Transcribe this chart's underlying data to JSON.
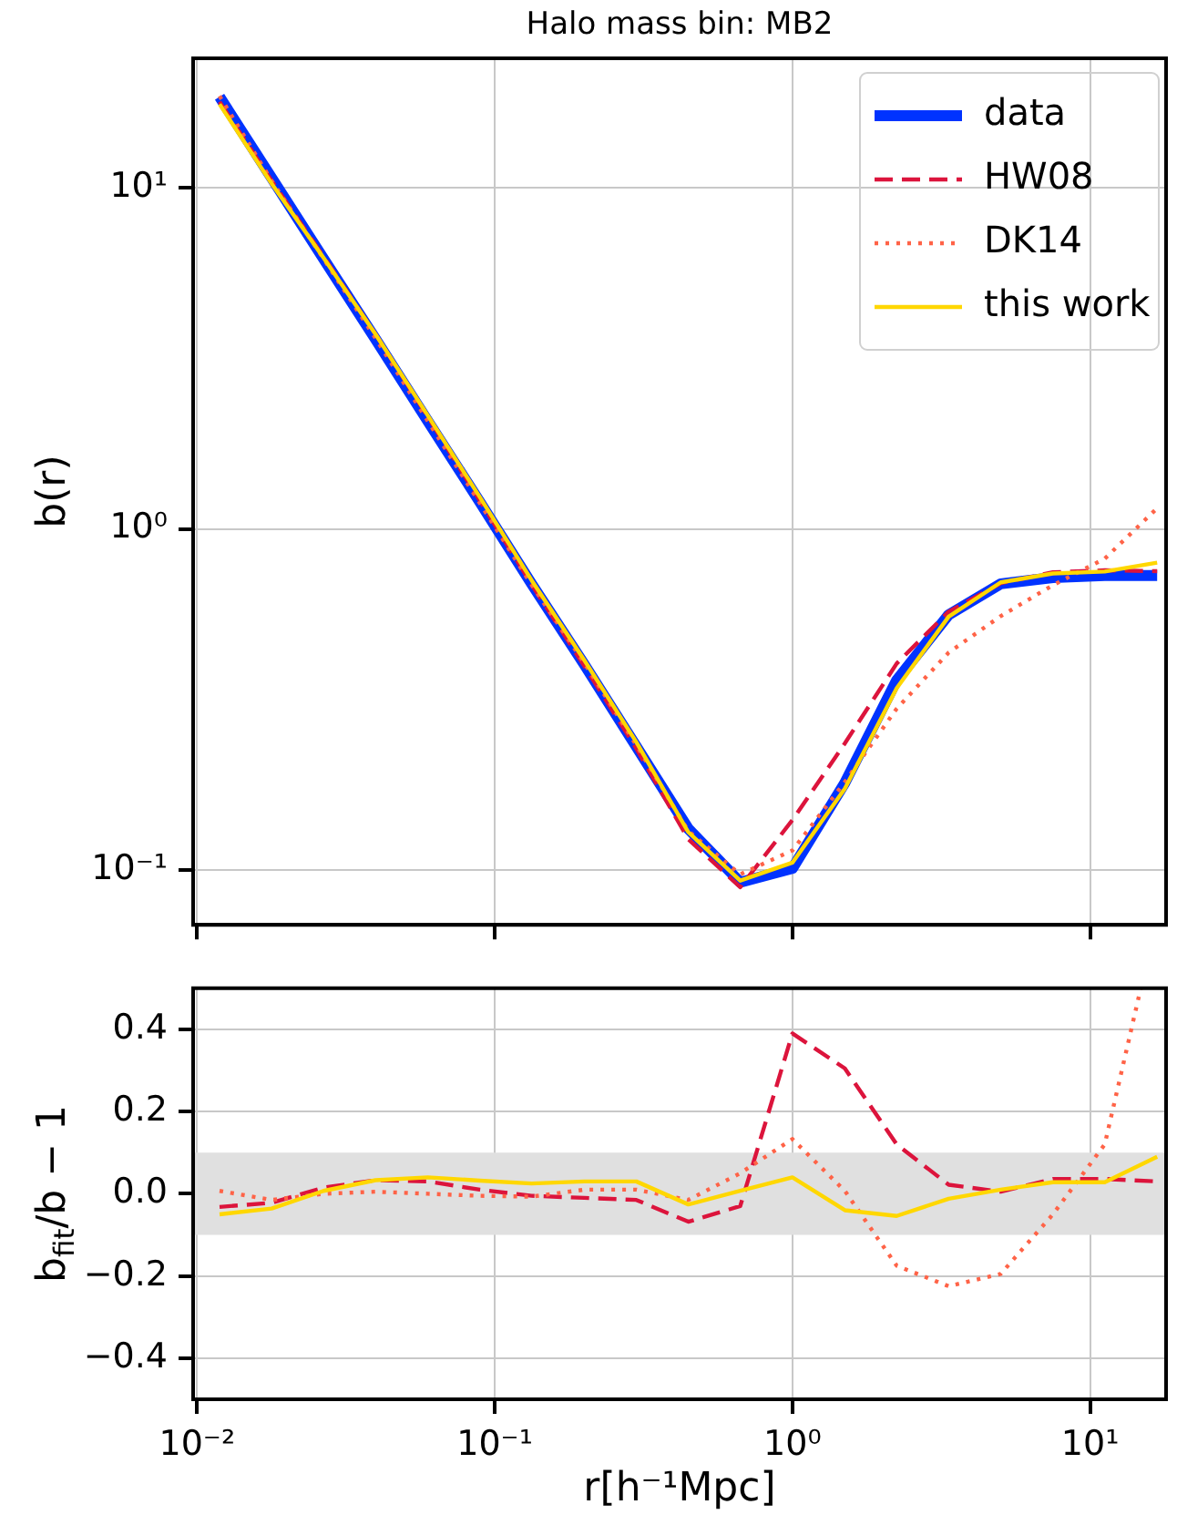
{
  "chart_data": [
    {
      "type": "line",
      "title": "Halo mass bin: MB2",
      "ylabel": "b(r)",
      "log": "xy",
      "grid": true,
      "legend": "top right",
      "marker": "none",
      "tick_labels": "y",
      "x": [
        0.0119,
        0.0178,
        0.0266,
        0.0398,
        0.0596,
        0.0891,
        0.133,
        0.2,
        0.299,
        0.447,
        0.668,
        1.0,
        1.5,
        2.24,
        3.35,
        5.01,
        7.5,
        11.2,
        16.8
      ],
      "xlim": [
        0.0097,
        18
      ],
      "xticks": [
        {
          "value": 0.01,
          "label": null
        },
        {
          "value": 0.1,
          "label": null
        },
        {
          "value": 1,
          "label": null
        },
        {
          "value": 10,
          "label": null
        }
      ],
      "ylim": [
        0.069,
        24
      ],
      "yticks": [
        {
          "value": 0.1,
          "label": "10⁻¹"
        },
        {
          "value": 1,
          "label": "10⁰"
        },
        {
          "value": 10,
          "label": "10¹"
        }
      ],
      "series": [
        {
          "name": "data",
          "color": "#0033ff",
          "line_style": "solid",
          "values": [
            18.5,
            10.7,
            6.2,
            3.6,
            2.07,
            1.2,
            0.69,
            0.4,
            0.23,
            0.132,
            0.092,
            0.101,
            0.18,
            0.36,
            0.56,
            0.69,
            0.72,
            0.73,
            0.73
          ]
        },
        {
          "name": "HW08",
          "color": "#dc143c",
          "line_style": "dashed",
          "values": [
            17.9,
            10.5,
            6.29,
            3.72,
            2.13,
            1.21,
            0.687,
            0.396,
            0.227,
            0.123,
            0.089,
            0.14,
            0.235,
            0.403,
            0.572,
            0.693,
            0.746,
            0.756,
            0.752
          ]
        },
        {
          "name": "DK14",
          "color": "#ff6347",
          "line_style": "dotted",
          "values": [
            18.6,
            10.5,
            6.2,
            3.62,
            2.07,
            1.19,
            0.685,
            0.404,
            0.232,
            0.13,
            0.097,
            0.114,
            0.181,
            0.297,
            0.434,
            0.555,
            0.684,
            0.818,
            1.15
          ]
        },
        {
          "name": "this work",
          "color": "#ffd700",
          "line_style": "solid",
          "values": [
            17.6,
            10.3,
            6.24,
            3.72,
            2.15,
            1.24,
            0.707,
            0.412,
            0.237,
            0.129,
            0.093,
            0.105,
            0.173,
            0.341,
            0.553,
            0.697,
            0.74,
            0.75,
            0.796
          ]
        }
      ]
    },
    {
      "type": "line",
      "xlabel": "r[h⁻¹Mpc]",
      "ylabel": "b$_{fit}$/b − 1",
      "log": "x",
      "grid": true,
      "marker": "none",
      "x": [
        0.0119,
        0.0178,
        0.0266,
        0.0398,
        0.0596,
        0.0891,
        0.133,
        0.2,
        0.299,
        0.447,
        0.668,
        1.0,
        1.5,
        2.24,
        3.35,
        5.01,
        7.5,
        11.2,
        16.8
      ],
      "xlim": [
        0.0097,
        18
      ],
      "xticks": [
        {
          "value": 0.01,
          "label": "10⁻²"
        },
        {
          "value": 0.1,
          "label": "10⁻¹"
        },
        {
          "value": 1,
          "label": "10⁰"
        },
        {
          "value": 10,
          "label": "10¹"
        }
      ],
      "ylim": [
        -0.5,
        0.5
      ],
      "yticks": [
        {
          "value": -0.4,
          "label": "−0.4"
        },
        {
          "value": -0.2,
          "label": "−0.2"
        },
        {
          "value": 0,
          "label": "0.0"
        },
        {
          "value": 0.2,
          "label": "0.2"
        },
        {
          "value": 0.4,
          "label": "0.4"
        }
      ],
      "bands": [
        {
          "axis": "y",
          "from": -0.1,
          "to": 0.1,
          "color": "#e0e0e0"
        }
      ],
      "series": [
        {
          "color": "#dc143c",
          "line_style": "dashed",
          "values": [
            -0.032,
            -0.022,
            0.015,
            0.033,
            0.03,
            0.01,
            -0.005,
            -0.01,
            -0.015,
            -0.068,
            -0.03,
            0.39,
            0.305,
            0.12,
            0.022,
            0.005,
            0.036,
            0.036,
            0.03
          ]
        },
        {
          "color": "#ff6347",
          "line_style": "dotted",
          "x": [
            0.0119,
            0.0178,
            0.0266,
            0.0398,
            0.0596,
            0.0891,
            0.133,
            0.2,
            0.299,
            0.447,
            0.668,
            1.0,
            1.5,
            2.24,
            3.35,
            5.01,
            7.5,
            11.2,
            14.8
          ],
          "values": [
            0.007,
            -0.015,
            0,
            0.005,
            0,
            -0.005,
            -0.007,
            0.01,
            0.01,
            -0.015,
            0.05,
            0.133,
            0.007,
            -0.175,
            -0.225,
            -0.195,
            -0.05,
            0.12,
            0.5
          ]
        },
        {
          "color": "#ffd700",
          "line_style": "solid",
          "values": [
            -0.05,
            -0.036,
            0.007,
            0.033,
            0.04,
            0.032,
            0.025,
            0.03,
            0.03,
            -0.026,
            0.007,
            0.04,
            -0.04,
            -0.054,
            -0.012,
            0.01,
            0.028,
            0.028,
            0.09
          ]
        }
      ]
    }
  ]
}
